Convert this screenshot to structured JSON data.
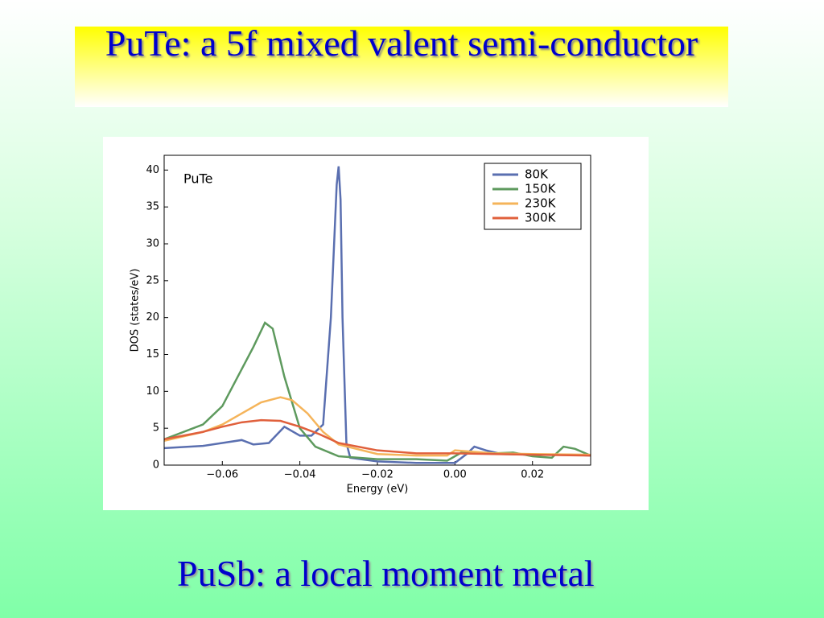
{
  "slide": {
    "title": "PuTe: a 5f mixed valent semi-conductor",
    "footer": "PuSb: a local moment metal"
  },
  "chart_data": {
    "type": "line",
    "annotation": "PuTe",
    "xlabel": "Energy (eV)",
    "ylabel": "DOS (states/eV)",
    "xlim": [
      -0.075,
      0.035
    ],
    "ylim": [
      0,
      42
    ],
    "xticks": [
      {
        "value": -0.06,
        "label": "−0.06"
      },
      {
        "value": -0.04,
        "label": "−0.04"
      },
      {
        "value": -0.02,
        "label": "−0.02"
      },
      {
        "value": 0,
        "label": "0.00"
      },
      0.02
    ],
    "yticks": [
      0,
      5,
      10,
      15,
      20,
      25,
      30,
      35,
      40
    ],
    "legend": "upper right",
    "series": [
      {
        "name": "80K",
        "color": "#5a6fb0",
        "x": [
          -0.075,
          -0.065,
          -0.06,
          -0.055,
          -0.052,
          -0.048,
          -0.044,
          -0.04,
          -0.037,
          -0.034,
          -0.032,
          -0.0305,
          -0.03,
          -0.0295,
          -0.029,
          -0.028,
          -0.027,
          -0.02,
          -0.01,
          0,
          0.003,
          0.005,
          0.008,
          0.012,
          0.02,
          0.03,
          0.035
        ],
        "values": [
          2.3,
          2.6,
          3.0,
          3.4,
          2.8,
          3.0,
          5.2,
          4.0,
          4.0,
          5.5,
          20,
          38,
          40.5,
          36,
          20,
          3,
          1,
          0.5,
          0.3,
          0.3,
          1.5,
          2.5,
          2.0,
          1.5,
          1.4,
          1.4,
          1.3
        ]
      },
      {
        "name": "150K",
        "color": "#5e9a5e",
        "x": [
          -0.075,
          -0.065,
          -0.06,
          -0.055,
          -0.052,
          -0.049,
          -0.047,
          -0.044,
          -0.04,
          -0.036,
          -0.03,
          -0.02,
          -0.01,
          -0.002,
          0.002,
          0.01,
          0.015,
          0.02,
          0.025,
          0.028,
          0.031,
          0.035
        ],
        "values": [
          3.5,
          5.5,
          8,
          13,
          16,
          19.3,
          18.5,
          12,
          5,
          2.5,
          1.2,
          0.8,
          0.8,
          0.6,
          1.8,
          1.6,
          1.7,
          1.2,
          1.0,
          2.5,
          2.2,
          1.3
        ]
      },
      {
        "name": "230K",
        "color": "#f5b45a",
        "x": [
          -0.075,
          -0.065,
          -0.06,
          -0.055,
          -0.05,
          -0.045,
          -0.042,
          -0.038,
          -0.034,
          -0.03,
          -0.02,
          -0.01,
          -0.002,
          0,
          0.01,
          0.02,
          0.035
        ],
        "values": [
          3.3,
          4.5,
          5.5,
          7,
          8.5,
          9.2,
          8.8,
          7,
          4.5,
          2.8,
          1.5,
          1.3,
          1.3,
          2.0,
          1.6,
          1.5,
          1.4
        ]
      },
      {
        "name": "300K",
        "color": "#e0603c",
        "x": [
          -0.075,
          -0.065,
          -0.06,
          -0.055,
          -0.05,
          -0.045,
          -0.04,
          -0.035,
          -0.03,
          -0.02,
          -0.01,
          0,
          0.01,
          0.02,
          0.035
        ],
        "values": [
          3.5,
          4.5,
          5.2,
          5.8,
          6.1,
          6.0,
          5.2,
          4.2,
          3.0,
          2.0,
          1.6,
          1.6,
          1.5,
          1.4,
          1.3
        ]
      }
    ]
  }
}
